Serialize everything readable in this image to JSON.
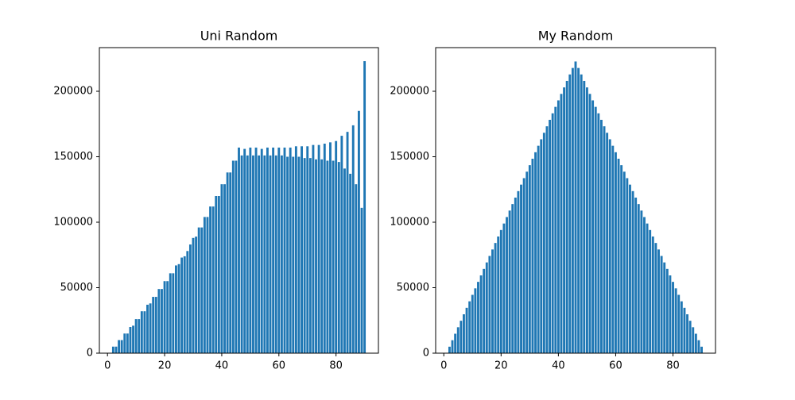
{
  "chart_data": [
    {
      "type": "bar",
      "title": "Uni Random",
      "color": "#1f77b4",
      "x": [
        2,
        3,
        4,
        5,
        6,
        7,
        8,
        9,
        10,
        11,
        12,
        13,
        14,
        15,
        16,
        17,
        18,
        19,
        20,
        21,
        22,
        23,
        24,
        25,
        26,
        27,
        28,
        29,
        30,
        31,
        32,
        33,
        34,
        35,
        36,
        37,
        38,
        39,
        40,
        41,
        42,
        43,
        44,
        45,
        46,
        47,
        48,
        49,
        50,
        51,
        52,
        53,
        54,
        55,
        56,
        57,
        58,
        59,
        60,
        61,
        62,
        63,
        64,
        65,
        66,
        67,
        68,
        69,
        70,
        71,
        72,
        73,
        74,
        75,
        76,
        77,
        78,
        79,
        80,
        81,
        82,
        83,
        84,
        85,
        86,
        87,
        88,
        89,
        90
      ],
      "values": [
        5000,
        5000,
        10000,
        10000,
        15000,
        15000,
        20000,
        21000,
        26000,
        26000,
        32000,
        32000,
        37000,
        38000,
        43000,
        43000,
        49000,
        49000,
        55000,
        55000,
        61000,
        61000,
        67000,
        68000,
        73000,
        74000,
        78000,
        83000,
        88000,
        89000,
        96000,
        96000,
        104000,
        104000,
        112000,
        112000,
        120000,
        120000,
        129000,
        129000,
        138000,
        138000,
        147000,
        147000,
        157000,
        151000,
        156000,
        151000,
        157000,
        151000,
        157000,
        151000,
        156000,
        151000,
        157000,
        151000,
        157000,
        151000,
        157000,
        151000,
        157000,
        150000,
        157000,
        150000,
        158000,
        150000,
        158000,
        149000,
        158000,
        149000,
        159000,
        148000,
        159000,
        148000,
        160000,
        147000,
        161000,
        147000,
        162000,
        146000,
        166000,
        141000,
        169000,
        137000,
        174000,
        129000,
        185000,
        111000,
        223000
      ],
      "xlim": [
        -2.84,
        94.84
      ],
      "xticks": [
        0,
        20,
        40,
        60,
        80
      ],
      "ylim": [
        0,
        233333
      ],
      "yticks": [
        0,
        50000,
        100000,
        150000,
        200000
      ]
    },
    {
      "type": "bar",
      "title": "My Random",
      "color": "#1f77b4",
      "x": [
        2,
        3,
        4,
        5,
        6,
        7,
        8,
        9,
        10,
        11,
        12,
        13,
        14,
        15,
        16,
        17,
        18,
        19,
        20,
        21,
        22,
        23,
        24,
        25,
        26,
        27,
        28,
        29,
        30,
        31,
        32,
        33,
        34,
        35,
        36,
        37,
        38,
        39,
        40,
        41,
        42,
        43,
        44,
        45,
        46,
        47,
        48,
        49,
        50,
        51,
        52,
        53,
        54,
        55,
        56,
        57,
        58,
        59,
        60,
        61,
        62,
        63,
        64,
        65,
        66,
        67,
        68,
        69,
        70,
        71,
        72,
        73,
        74,
        75,
        76,
        77,
        78,
        79,
        80,
        81,
        82,
        83,
        84,
        85,
        86,
        87,
        88,
        89,
        90
      ],
      "values": [
        4950,
        9900,
        14850,
        19800,
        24750,
        29700,
        34650,
        39600,
        44550,
        49500,
        54450,
        59400,
        64350,
        69300,
        74250,
        79200,
        84150,
        89100,
        94050,
        99000,
        103950,
        108900,
        113850,
        118800,
        123750,
        128700,
        133650,
        138600,
        143550,
        148500,
        153450,
        158400,
        163350,
        168300,
        173250,
        178200,
        183150,
        188100,
        193050,
        198000,
        202950,
        207900,
        212850,
        217800,
        222750,
        217800,
        212850,
        207900,
        202950,
        198000,
        193050,
        188100,
        183150,
        178200,
        173250,
        168300,
        163350,
        158400,
        153450,
        148500,
        143550,
        138600,
        133650,
        128700,
        123750,
        118800,
        113850,
        108900,
        103950,
        99000,
        94050,
        89100,
        84150,
        79200,
        74250,
        69300,
        64350,
        59400,
        54450,
        49500,
        44550,
        39600,
        34650,
        29700,
        24750,
        19800,
        14850,
        9900,
        4950
      ],
      "xlim": [
        -2.84,
        94.84
      ],
      "xticks": [
        0,
        20,
        40,
        60,
        80
      ],
      "ylim": [
        0,
        233333
      ],
      "yticks": [
        0,
        50000,
        100000,
        150000,
        200000
      ]
    }
  ]
}
